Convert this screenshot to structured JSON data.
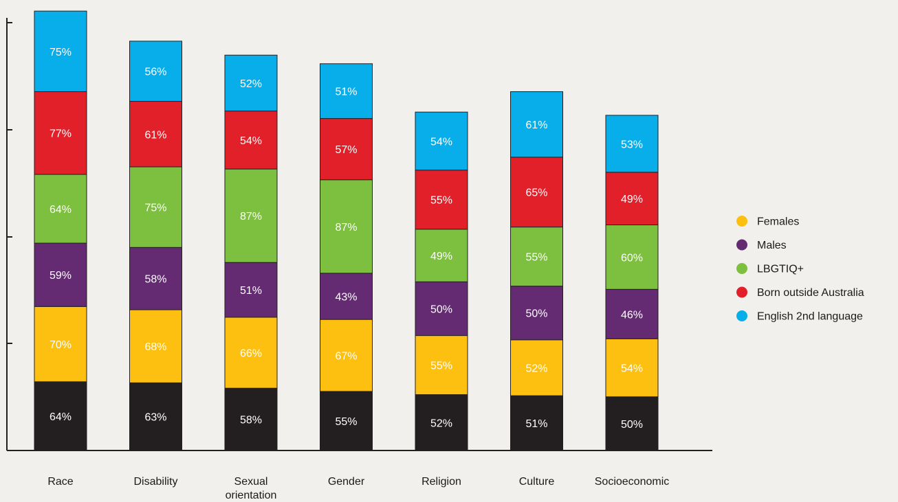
{
  "chart_data": {
    "type": "bar",
    "stacked": true,
    "categories": [
      "Race",
      "Disability",
      "Sexual orientation",
      "Gender",
      "Religion",
      "Culture",
      "Socioeconomic"
    ],
    "series": [
      {
        "key": "base",
        "color": "#231f20",
        "text_color": "#ffffff",
        "values": [
          64,
          63,
          58,
          55,
          52,
          51,
          50
        ]
      },
      {
        "name": "Females",
        "color": "#fdc010",
        "text_color": "#ffffff",
        "values": [
          70,
          68,
          66,
          67,
          55,
          52,
          54
        ]
      },
      {
        "name": "Males",
        "color": "#642b73",
        "text_color": "#ffffff",
        "values": [
          59,
          58,
          51,
          43,
          50,
          50,
          46
        ]
      },
      {
        "name": "LBGTIQ+",
        "color": "#7dbf3f",
        "text_color": "#ffffff",
        "values": [
          64,
          75,
          87,
          87,
          49,
          55,
          60
        ]
      },
      {
        "name": "Born outside Australia",
        "color": "#e2202a",
        "text_color": "#ffffff",
        "values": [
          77,
          61,
          54,
          57,
          55,
          65,
          49
        ]
      },
      {
        "name": "English 2nd language",
        "color": "#08aeea",
        "text_color": "#ffffff",
        "values": [
          75,
          56,
          52,
          51,
          54,
          61,
          53
        ]
      }
    ],
    "value_suffix": "%",
    "legend_position": "right",
    "grid": false,
    "y_ticks_labeled": false
  }
}
